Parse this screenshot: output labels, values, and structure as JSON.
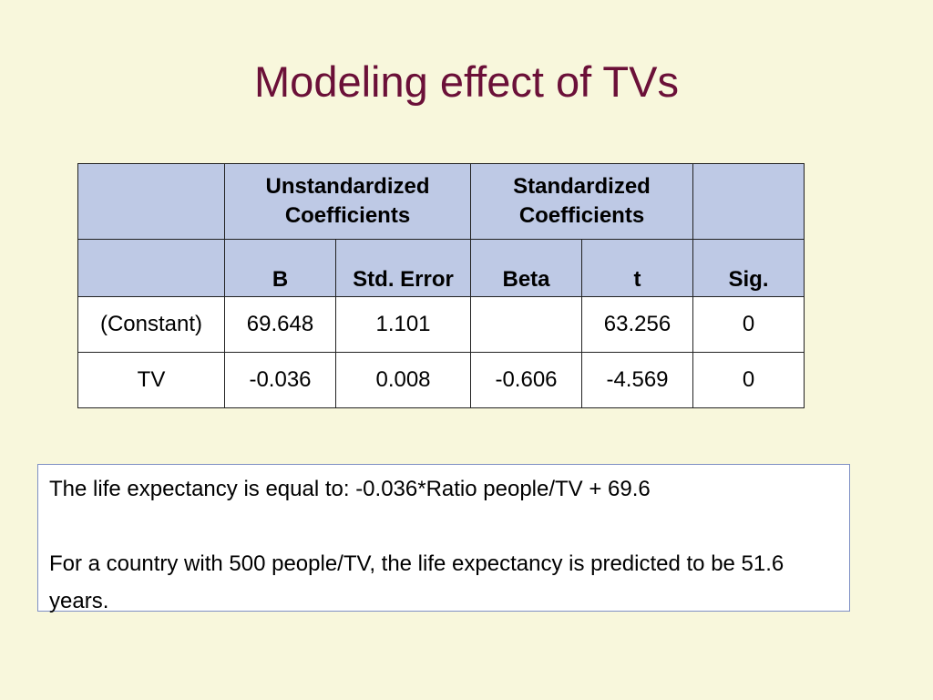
{
  "slide": {
    "title": "Modeling effect of TVs"
  },
  "table": {
    "group_headers": [
      "",
      "Unstandardized Coefficients",
      "Standardized Coefficients",
      ""
    ],
    "columns": [
      "",
      "B",
      "Std. Error",
      "Beta",
      "t",
      "Sig."
    ],
    "rows": [
      [
        "(Constant)",
        "69.648",
        "1.101",
        "",
        "63.256",
        "0"
      ],
      [
        "TV",
        "-0.036",
        "0.008",
        "-0.606",
        "-4.569",
        "0"
      ]
    ]
  },
  "note": {
    "line1": "The life expectancy is equal to: -0.036*Ratio people/TV + 69.6",
    "line2": "For a country with 500 people/TV, the life expectancy is predicted to be 51.6 years."
  },
  "colors": {
    "background": "#f8f7dc",
    "title": "#6b1038",
    "header_fill": "#bec9e5",
    "note_border": "#7f90c4"
  }
}
